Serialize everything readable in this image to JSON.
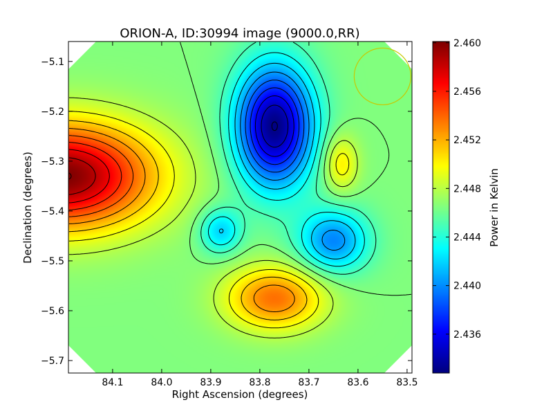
{
  "chart_data": {
    "type": "heatmap",
    "title": "ORION-A, ID:30994 image (9000.0,RR)",
    "xlabel": "Right Ascension (degrees)",
    "ylabel": "Declination (degrees)",
    "colorbar_label": "Power in Kelvin",
    "colormap": "jet",
    "xlim": [
      84.19,
      83.49
    ],
    "ylim": [
      -5.725,
      -5.06
    ],
    "x_inverted": true,
    "xticks": [
      84.1,
      84.0,
      83.9,
      83.8,
      83.7,
      83.6,
      83.5
    ],
    "xtick_labels": [
      "84.1",
      "84.0",
      "83.9",
      "83.8",
      "83.7",
      "83.6",
      "83.5"
    ],
    "yticks": [
      -5.1,
      -5.2,
      -5.3,
      -5.4,
      -5.5,
      -5.6,
      -5.7
    ],
    "ytick_labels": [
      "−5.1",
      "−5.2",
      "−5.3",
      "−5.4",
      "−5.5",
      "−5.6",
      "−5.7"
    ],
    "colorbar_range": [
      2.4328,
      2.4601
    ],
    "colorbar_ticks": [
      2.436,
      2.44,
      2.444,
      2.448,
      2.452,
      2.456,
      2.46
    ],
    "colorbar_tick_labels": [
      "2.436",
      "2.440",
      "2.444",
      "2.448",
      "2.452",
      "2.456",
      "2.460"
    ],
    "background_value": 2.4465,
    "features": [
      {
        "kind": "max",
        "x": 84.2,
        "y": -5.33,
        "peak": 2.4601
      },
      {
        "kind": "min",
        "x": 83.77,
        "y": -5.23,
        "peak": 2.4329
      },
      {
        "kind": "min",
        "x": 83.88,
        "y": -5.44,
        "peak": 2.4418
      },
      {
        "kind": "min",
        "x": 83.65,
        "y": -5.46,
        "peak": 2.4398
      },
      {
        "kind": "max",
        "x": 83.77,
        "y": -5.575,
        "peak": 2.4537
      },
      {
        "kind": "max",
        "x": 83.635,
        "y": -5.305,
        "peak": 2.4505
      }
    ],
    "contour_interval": 0.0015,
    "beam_circle": {
      "x": 83.55,
      "y": -5.13,
      "color": "#c8c800"
    },
    "map_boundary": "octagonal",
    "grid": false
  }
}
